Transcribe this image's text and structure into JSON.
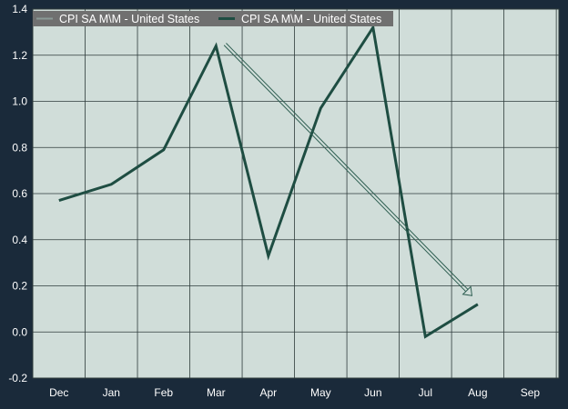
{
  "colors": {
    "background": "#1a2a3a",
    "plot_area": "#d0ddd9",
    "grid": "#2e3b3b",
    "series_line": "#1e4d42",
    "arrow": "#2f5f52",
    "tick_text": "#ffffff",
    "legend_bg": "#707070"
  },
  "chart_data": {
    "type": "line",
    "title": "",
    "xlabel": "",
    "ylabel": "",
    "categories": [
      "Dec",
      "Jan",
      "Feb",
      "Mar",
      "Apr",
      "May",
      "Jun",
      "Jul",
      "Aug",
      "Sep"
    ],
    "ylim": [
      -0.2,
      1.4
    ],
    "yticks": [
      "-0.2",
      "0.0",
      "0.2",
      "0.4",
      "0.6",
      "0.8",
      "1.0",
      "1.2",
      "1.4"
    ],
    "grid": true,
    "legend_position": "top-left",
    "legend": [
      "CPI SA M\\M - United States",
      "CPI SA M\\M - United States"
    ],
    "series": [
      {
        "name": "CPI SA M\\M - United States",
        "values": [
          0.57,
          0.64,
          0.79,
          1.24,
          0.33,
          0.97,
          1.32,
          -0.02,
          0.12,
          null
        ]
      }
    ],
    "annotations": [
      {
        "type": "trend-arrow",
        "from": {
          "x": "Mar",
          "y": 1.24
        },
        "to": {
          "x": "Aug",
          "y": 0.18
        }
      }
    ]
  }
}
